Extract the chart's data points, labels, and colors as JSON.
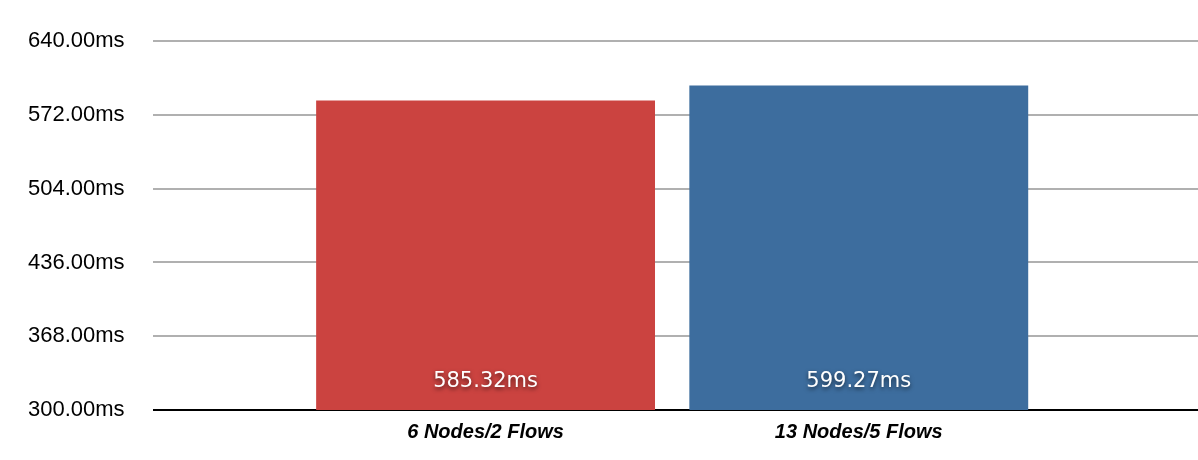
{
  "chart_data": {
    "type": "bar",
    "categories": [
      "6 Nodes/2 Flows",
      "13 Nodes/5 Flows"
    ],
    "values": [
      585.32,
      599.27
    ],
    "colors": [
      "#cb4340",
      "#3d6d9e"
    ],
    "value_labels": [
      "585.32ms",
      "599.27ms"
    ],
    "ylim": [
      300,
      640
    ],
    "yticks": [
      {
        "value": 300,
        "label": "300.00ms"
      },
      {
        "value": 368,
        "label": "368.00ms"
      },
      {
        "value": 436,
        "label": "436.00ms"
      },
      {
        "value": 504,
        "label": "504.00ms"
      },
      {
        "value": 572,
        "label": "572.00ms"
      },
      {
        "value": 640,
        "label": "640.00ms"
      }
    ],
    "grid": "y",
    "legend": false
  }
}
